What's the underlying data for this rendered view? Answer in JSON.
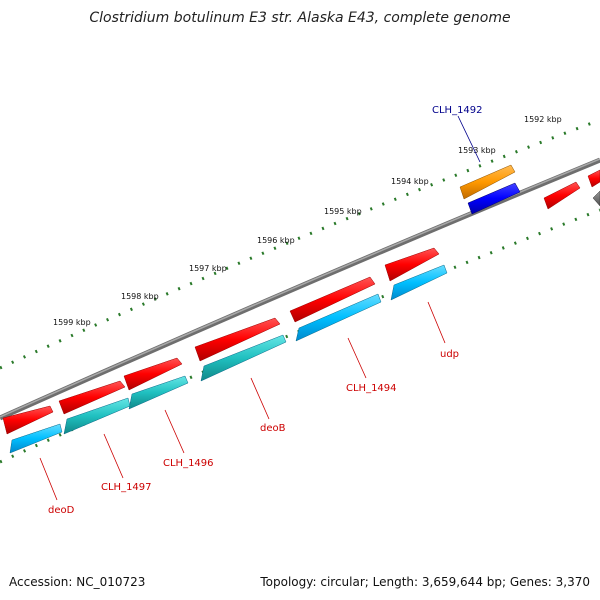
{
  "title": "Clostridium botulinum E3 str. Alaska E43, complete genome",
  "footer": {
    "accession": "Accession: NC_010723",
    "summary": "Topology: circular; Length: 3,659,644 bp; Genes: 3,370"
  },
  "ticks": [
    {
      "label": "1592 kbp"
    },
    {
      "label": "1593 kbp"
    },
    {
      "label": "1594 kbp"
    },
    {
      "label": "1595 kbp"
    },
    {
      "label": "1596 kbp"
    },
    {
      "label": "1597 kbp"
    },
    {
      "label": "1598 kbp"
    },
    {
      "label": "1599 kbp"
    }
  ],
  "genes": [
    {
      "label": "CLH_1492",
      "color": "#00008b"
    },
    {
      "label": "udp",
      "color": "#cc0000"
    },
    {
      "label": "CLH_1494",
      "color": "#cc0000"
    },
    {
      "label": "deoB",
      "color": "#cc0000"
    },
    {
      "label": "CLH_1496",
      "color": "#cc0000"
    },
    {
      "label": "CLH_1497",
      "color": "#cc0000"
    },
    {
      "label": "deoD",
      "color": "#cc0000"
    }
  ],
  "colors": {
    "backbone": "#808080",
    "tick_marks": "#2a7a2a",
    "forward_gene": "#ff0000",
    "cds_light": "#00bfff",
    "cds_teal": "#20c0c0",
    "orange_gene": "#ff9900",
    "blue_gene": "#0000ff",
    "gray_gene": "#707070"
  }
}
